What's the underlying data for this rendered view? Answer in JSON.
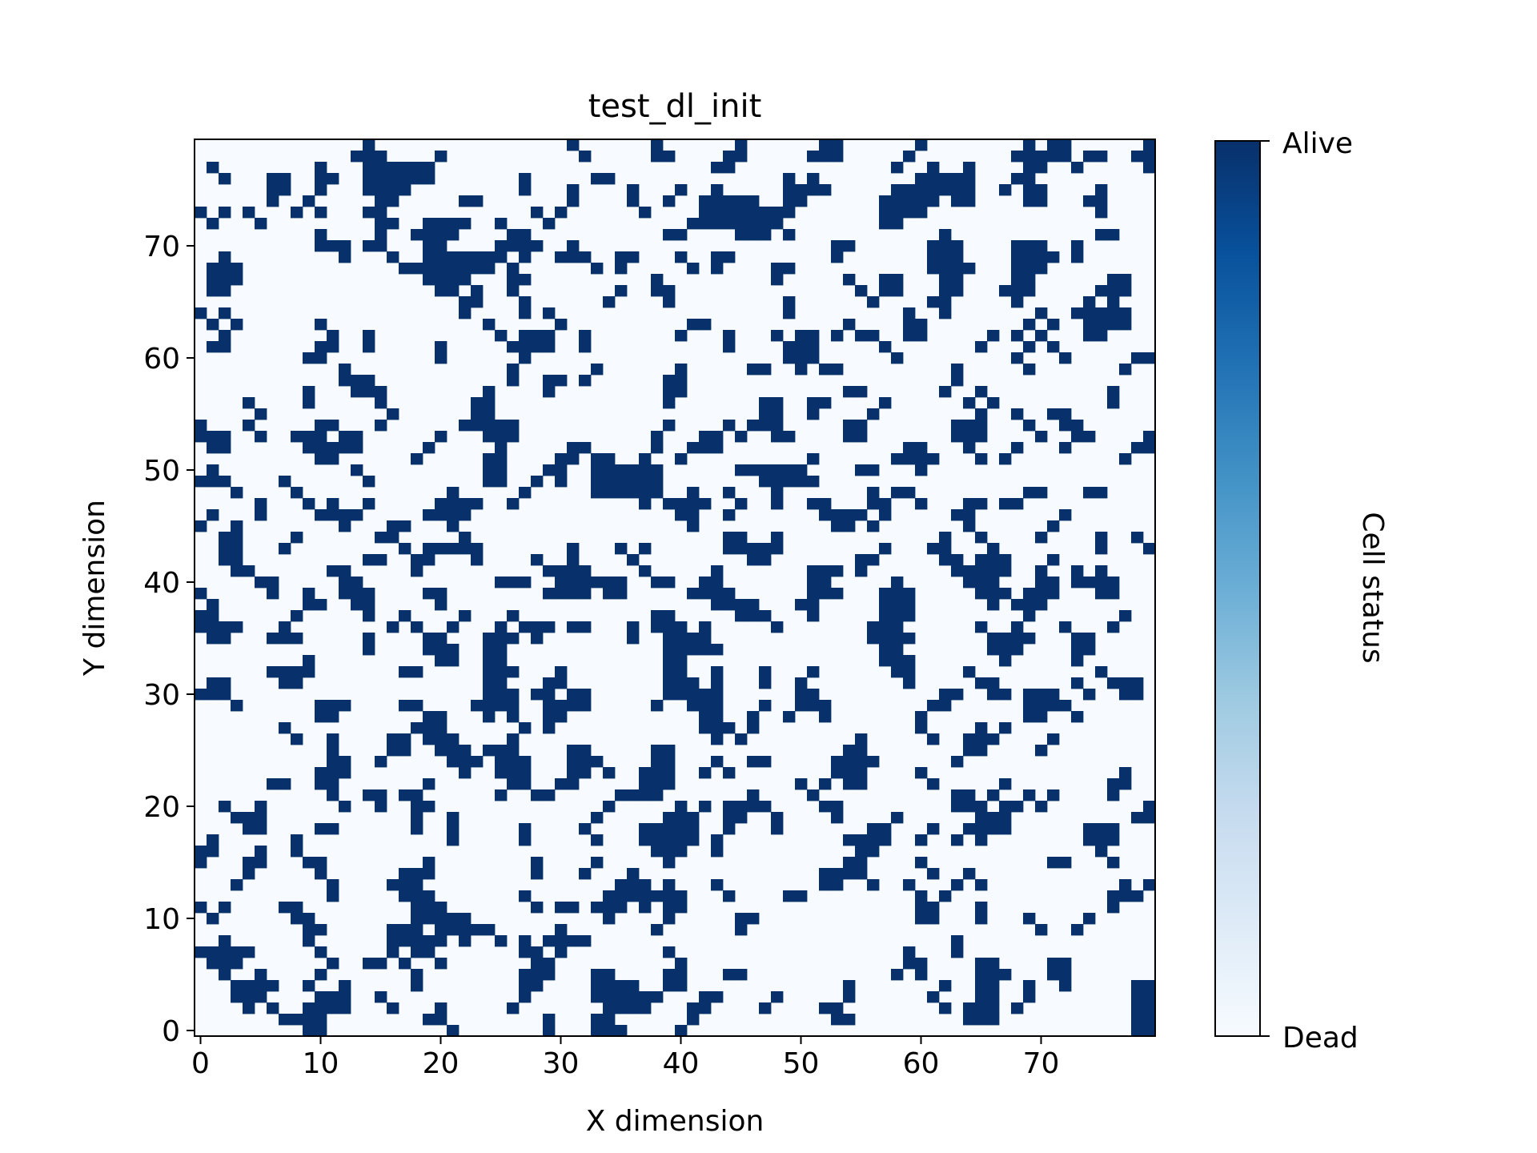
{
  "chart_data": {
    "type": "heatmap",
    "title": "test_dl_init",
    "xlabel": "X dimension",
    "ylabel": "Y dimension",
    "grid_size": [
      80,
      80
    ],
    "xlim": [
      -0.5,
      79.5
    ],
    "ylim": [
      -0.5,
      79.5
    ],
    "x_ticks": [
      0,
      10,
      20,
      30,
      40,
      50,
      60,
      70
    ],
    "y_ticks": [
      0,
      10,
      20,
      30,
      40,
      50,
      60,
      70
    ],
    "colormap": "Blues",
    "colors": {
      "dead": "#f7fbff",
      "alive": "#08306b"
    },
    "colorbar": {
      "label": "Cell status",
      "tick_labels": [
        "Dead",
        "Alive"
      ],
      "range": [
        0,
        1
      ]
    },
    "density": 0.22,
    "seed": 20240611
  }
}
